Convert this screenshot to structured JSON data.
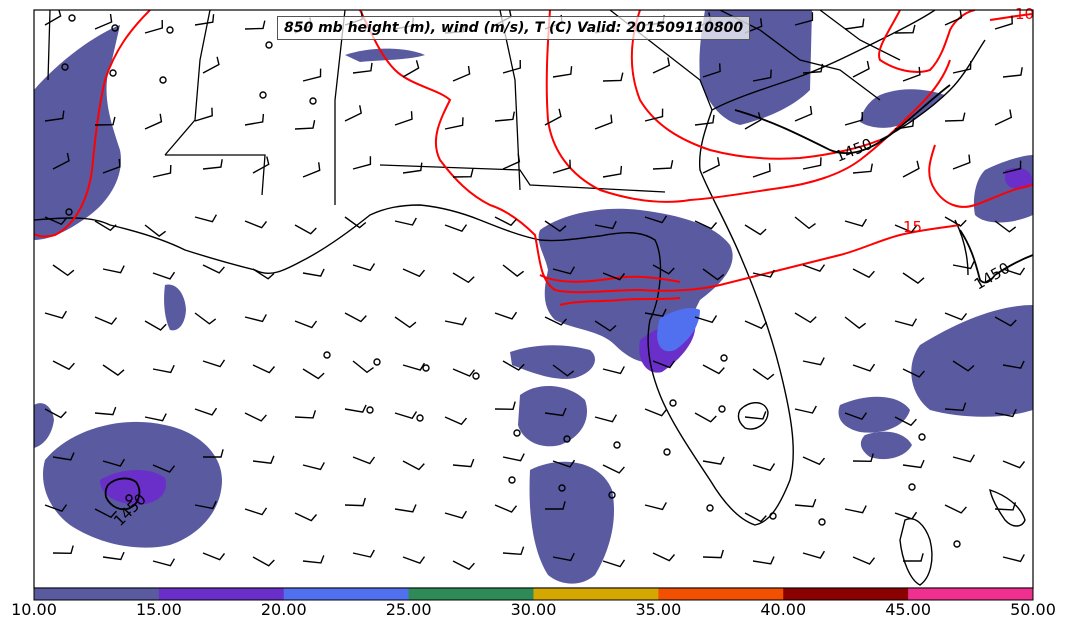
{
  "title": "850 mb height (m), wind (m/s), T (C) Valid: 201509110800",
  "colorbar": {
    "ticks": [
      "10.00",
      "15.00",
      "20.00",
      "25.00",
      "30.00",
      "35.00",
      "40.00",
      "45.00",
      "50.00"
    ],
    "colors": [
      "#5a5aa0",
      "#6a2fc8",
      "#5070f0",
      "#2e8b57",
      "#d4a800",
      "#f05000",
      "#8b0000",
      "#f03090"
    ]
  },
  "contours": {
    "height_label": "1450",
    "temp_labels": [
      "15",
      "10"
    ]
  },
  "colors": {
    "height_contour": "#000000",
    "temp_contour": "#ff0000",
    "coast": "#000000"
  }
}
